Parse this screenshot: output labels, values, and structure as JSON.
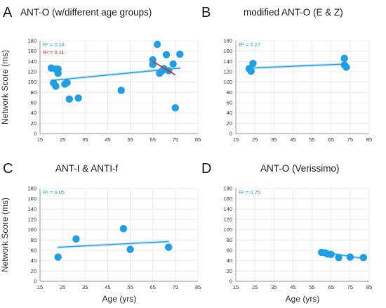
{
  "axes": {
    "ylabel": "Network Score (ms)",
    "xlabel": "Age (yrs)"
  },
  "colors": {
    "point": "#1f9fe6",
    "trend": "#1f9fe6",
    "trend_band": "#a9d8f5",
    "secondary_trend": "#e02020",
    "grid": "#e6e6e6",
    "axis": "#999999"
  },
  "chart_data": [
    {
      "type": "scatter",
      "letter": "A",
      "title": "ANT-O (w/different age groups)",
      "r2_labels": [
        {
          "text": "R² = 0.14",
          "color": "#1f9fe6"
        },
        {
          "text": "R² = 0.11",
          "color": "#e02020"
        }
      ],
      "xlim": [
        15,
        85
      ],
      "ylim": [
        0,
        180
      ],
      "xticks": [
        15,
        25,
        35,
        45,
        55,
        65,
        75,
        85
      ],
      "yticks": [
        0,
        20,
        40,
        60,
        80,
        100,
        120,
        140,
        160,
        180
      ],
      "grid": true,
      "points": [
        [
          20,
          127
        ],
        [
          21,
          98
        ],
        [
          22,
          125
        ],
        [
          22,
          92
        ],
        [
          23,
          125
        ],
        [
          23,
          117
        ],
        [
          26,
          96
        ],
        [
          27,
          99
        ],
        [
          28,
          67
        ],
        [
          32,
          69
        ],
        [
          51,
          84
        ],
        [
          65,
          143
        ],
        [
          65,
          134
        ],
        [
          67,
          173
        ],
        [
          68,
          117
        ],
        [
          69,
          121
        ],
        [
          70,
          126
        ],
        [
          71,
          153
        ],
        [
          72,
          122
        ],
        [
          74,
          135
        ],
        [
          75,
          50
        ],
        [
          77,
          154
        ]
      ],
      "trendlines": [
        {
          "x": [
            20,
            77
          ],
          "y": [
            103,
            127
          ],
          "color": "#1f9fe6"
        },
        {
          "x": [
            65,
            75
          ],
          "y": [
            140,
            114
          ],
          "color": "#e02020"
        }
      ]
    },
    {
      "type": "scatter",
      "letter": "B",
      "title": "modified ANT-O (E & Z)",
      "r2_labels": [
        {
          "text": "R² = 0.27",
          "color": "#1f9fe6"
        }
      ],
      "xlim": [
        15,
        85
      ],
      "ylim": [
        0,
        180
      ],
      "xticks": [
        15,
        25,
        35,
        45,
        55,
        65,
        75,
        85
      ],
      "yticks": [
        0,
        20,
        40,
        60,
        80,
        100,
        120,
        140,
        160,
        180
      ],
      "grid": true,
      "points": [
        [
          22,
          126
        ],
        [
          23,
          121
        ],
        [
          24,
          136
        ],
        [
          72,
          146
        ],
        [
          72,
          133
        ],
        [
          73,
          129
        ]
      ],
      "trendlines": [
        {
          "x": [
            22,
            73
          ],
          "y": [
            127,
            135
          ],
          "color": "#1f9fe6"
        }
      ]
    },
    {
      "type": "scatter",
      "letter": "C",
      "title": "ANT-I & ANTI-f",
      "r2_labels": [
        {
          "text": "R² = 0.05",
          "color": "#1f9fe6"
        }
      ],
      "xlim": [
        15,
        85
      ],
      "ylim": [
        0,
        180
      ],
      "xticks": [
        15,
        25,
        35,
        45,
        55,
        65,
        75,
        85
      ],
      "yticks": [
        0,
        20,
        40,
        60,
        80,
        100,
        120,
        140,
        160,
        180
      ],
      "grid": true,
      "points": [
        [
          23,
          47
        ],
        [
          31,
          82
        ],
        [
          52,
          102
        ],
        [
          55,
          62
        ],
        [
          72,
          66
        ]
      ],
      "trendlines": [
        {
          "x": [
            23,
            72
          ],
          "y": [
            66,
            77
          ],
          "color": "#1f9fe6"
        }
      ]
    },
    {
      "type": "scatter",
      "letter": "D",
      "title": "ANT-O (Verissimo)",
      "r2_labels": [
        {
          "text": "R² = 0.75",
          "color": "#1f9fe6"
        }
      ],
      "xlim": [
        15,
        85
      ],
      "ylim": [
        0,
        180
      ],
      "xticks": [
        15,
        25,
        35,
        45,
        55,
        65,
        75,
        85
      ],
      "yticks": [
        0,
        20,
        40,
        60,
        80,
        100,
        120,
        140,
        160,
        180
      ],
      "grid": true,
      "points": [
        [
          60,
          56
        ],
        [
          62,
          55
        ],
        [
          63,
          53
        ],
        [
          65,
          52
        ],
        [
          69,
          46
        ],
        [
          75,
          47
        ],
        [
          82,
          46
        ]
      ],
      "trendlines": [
        {
          "x": [
            60,
            82
          ],
          "y": [
            57,
            44
          ],
          "color": "#1f9fe6"
        }
      ]
    }
  ]
}
